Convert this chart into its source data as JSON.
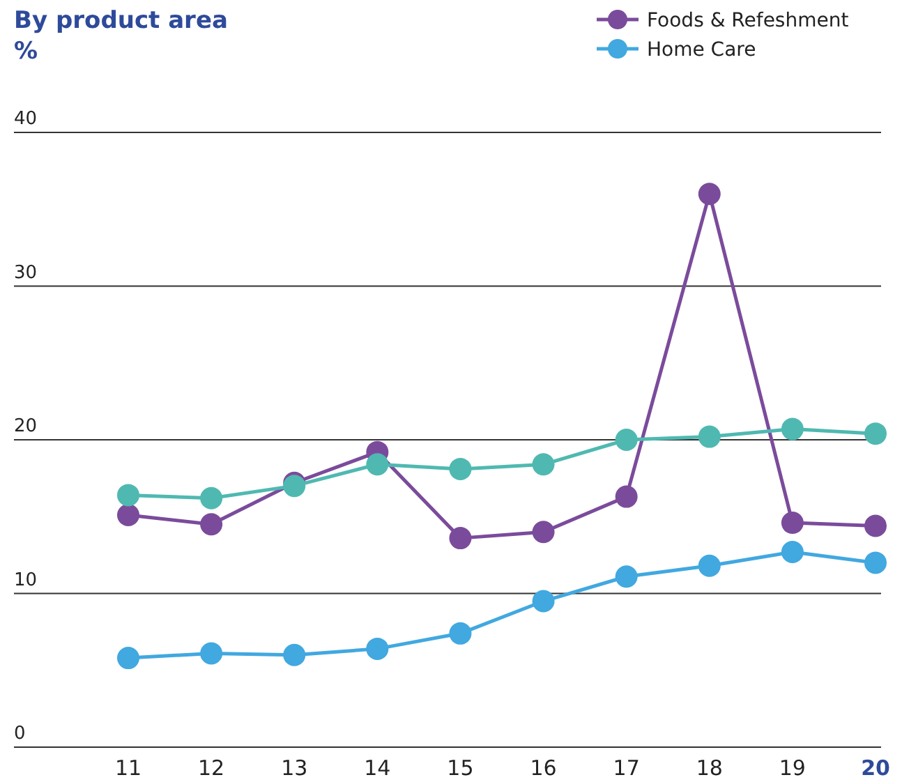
{
  "chart_data": {
    "type": "line",
    "title": "By product area",
    "subtitle": "%",
    "categories": [
      "11",
      "12",
      "13",
      "14",
      "15",
      "16",
      "17",
      "18",
      "19",
      "20"
    ],
    "series": [
      {
        "color": "#4fb9b1",
        "values": [
          16.4,
          16.2,
          17.0,
          18.4,
          18.1,
          18.4,
          20.0,
          20.2,
          20.7,
          20.4
        ]
      },
      {
        "name": "Foods & Refeshment",
        "color": "#7b4b9b",
        "values": [
          15.1,
          14.5,
          17.2,
          19.2,
          13.6,
          14.0,
          16.3,
          36.0,
          14.6,
          14.4
        ]
      },
      {
        "name": "Home Care",
        "color": "#41a8e0",
        "values": [
          5.8,
          6.1,
          6.0,
          6.4,
          7.4,
          9.5,
          11.1,
          11.8,
          12.7,
          12.0
        ]
      }
    ],
    "ylim": [
      0,
      40
    ],
    "yticks": [
      0,
      10,
      20,
      30,
      40
    ],
    "grid": "y",
    "legend": "top right",
    "marker": "circle",
    "line_style": "solid"
  }
}
